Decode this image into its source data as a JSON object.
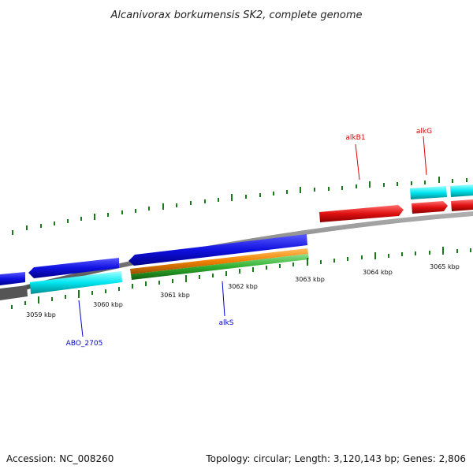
{
  "title": "Alcanivorax borkumensis SK2, complete genome",
  "footer": {
    "accession": "Accession: NC_008260",
    "summary": "Topology: circular; Length: 3,120,143 bp; Genes: 2,806"
  },
  "scale": {
    "tick_labels": [
      "3059 kbp",
      "3060 kbp",
      "3061 kbp",
      "3062 kbp",
      "3063 kbp",
      "3064 kbp",
      "3065 kbp"
    ]
  },
  "gene_labels": [
    {
      "name": "ABO_2705",
      "color": "#0000cc"
    },
    {
      "name": "alkS",
      "color": "#0000cc"
    },
    {
      "name": "alkB1",
      "color": "#dd0000"
    },
    {
      "name": "alkG",
      "color": "#dd0000"
    }
  ],
  "colors": {
    "backbone": "#808080",
    "forward_cds": "#e01010",
    "forward_gene": "#00e6f0",
    "reverse_cds": "#1010e0",
    "reverse_gene": "#00e6f0",
    "orange_feature": "#f08000",
    "green_feature": "#30b030",
    "tick": "#1a7a1a"
  }
}
